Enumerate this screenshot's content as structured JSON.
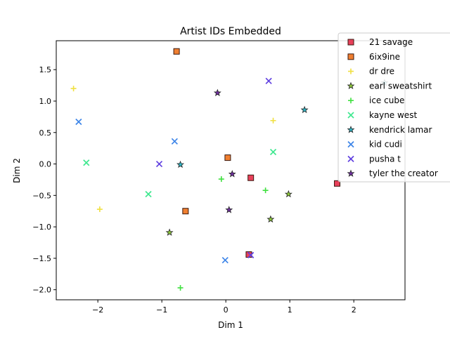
{
  "chart_data": {
    "type": "scatter",
    "title": "Artist IDs Embedded",
    "xlabel": "Dim 1",
    "ylabel": "Dim 2",
    "xlim": [
      -2.65,
      2.8
    ],
    "ylim": [
      -2.16,
      1.96
    ],
    "xticks": [
      -2,
      -1,
      0,
      1,
      2
    ],
    "yticks": [
      -2.0,
      -1.5,
      -1.0,
      -0.5,
      0.0,
      0.5,
      1.0,
      1.5
    ],
    "xtick_labels": [
      "−2",
      "−1",
      "0",
      "1",
      "2"
    ],
    "ytick_labels": [
      "−2.0",
      "−1.5",
      "−1.0",
      "−0.5",
      "0.0",
      "0.5",
      "1.0",
      "1.5"
    ],
    "grid": false,
    "legend_position": "top-right",
    "series": [
      {
        "name": "21 savage",
        "marker": "square",
        "color": "#e8405a",
        "x": [
          0.39,
          1.74,
          0.36
        ],
        "y": [
          -0.22,
          -0.31,
          -1.44
        ]
      },
      {
        "name": "6ix9ine",
        "marker": "square",
        "color": "#f07f30",
        "x": [
          -0.77,
          0.03,
          -0.63
        ],
        "y": [
          1.79,
          0.1,
          -0.75
        ]
      },
      {
        "name": "dr dre",
        "marker": "plus",
        "color": "#f0e040",
        "x": [
          -2.38,
          0.74,
          -1.97
        ],
        "y": [
          1.2,
          0.69,
          -0.72
        ]
      },
      {
        "name": "earl sweatshirt",
        "marker": "star",
        "color": "#8dc83c",
        "x": [
          0.98,
          0.7,
          -0.88
        ],
        "y": [
          -0.48,
          -0.88,
          -1.09
        ]
      },
      {
        "name": "ice cube",
        "marker": "plus",
        "color": "#40e040",
        "x": [
          -0.07,
          0.62,
          -0.71
        ],
        "y": [
          -0.24,
          -0.42,
          -1.97
        ]
      },
      {
        "name": "kayne west",
        "marker": "x",
        "color": "#40e890",
        "x": [
          -2.18,
          0.74,
          -1.21
        ],
        "y": [
          0.02,
          0.19,
          -0.48
        ]
      },
      {
        "name": "kendrick lamar",
        "marker": "star",
        "color": "#30b8c8",
        "x": [
          1.23,
          -0.71,
          2.48
        ],
        "y": [
          0.86,
          -0.01,
          1.29
        ]
      },
      {
        "name": "kid cudi",
        "marker": "x",
        "color": "#3d85e8",
        "x": [
          -2.3,
          -0.8,
          -0.01
        ],
        "y": [
          0.67,
          0.36,
          -1.53
        ]
      },
      {
        "name": "pusha t",
        "marker": "x",
        "color": "#6040e0",
        "x": [
          -1.04,
          0.67,
          0.39
        ],
        "y": [
          0.0,
          1.32,
          -1.45
        ]
      },
      {
        "name": "tyler the creator",
        "marker": "star",
        "color": "#7030a0",
        "x": [
          -0.13,
          0.1,
          0.05
        ],
        "y": [
          1.13,
          -0.16,
          -0.73
        ]
      }
    ]
  }
}
